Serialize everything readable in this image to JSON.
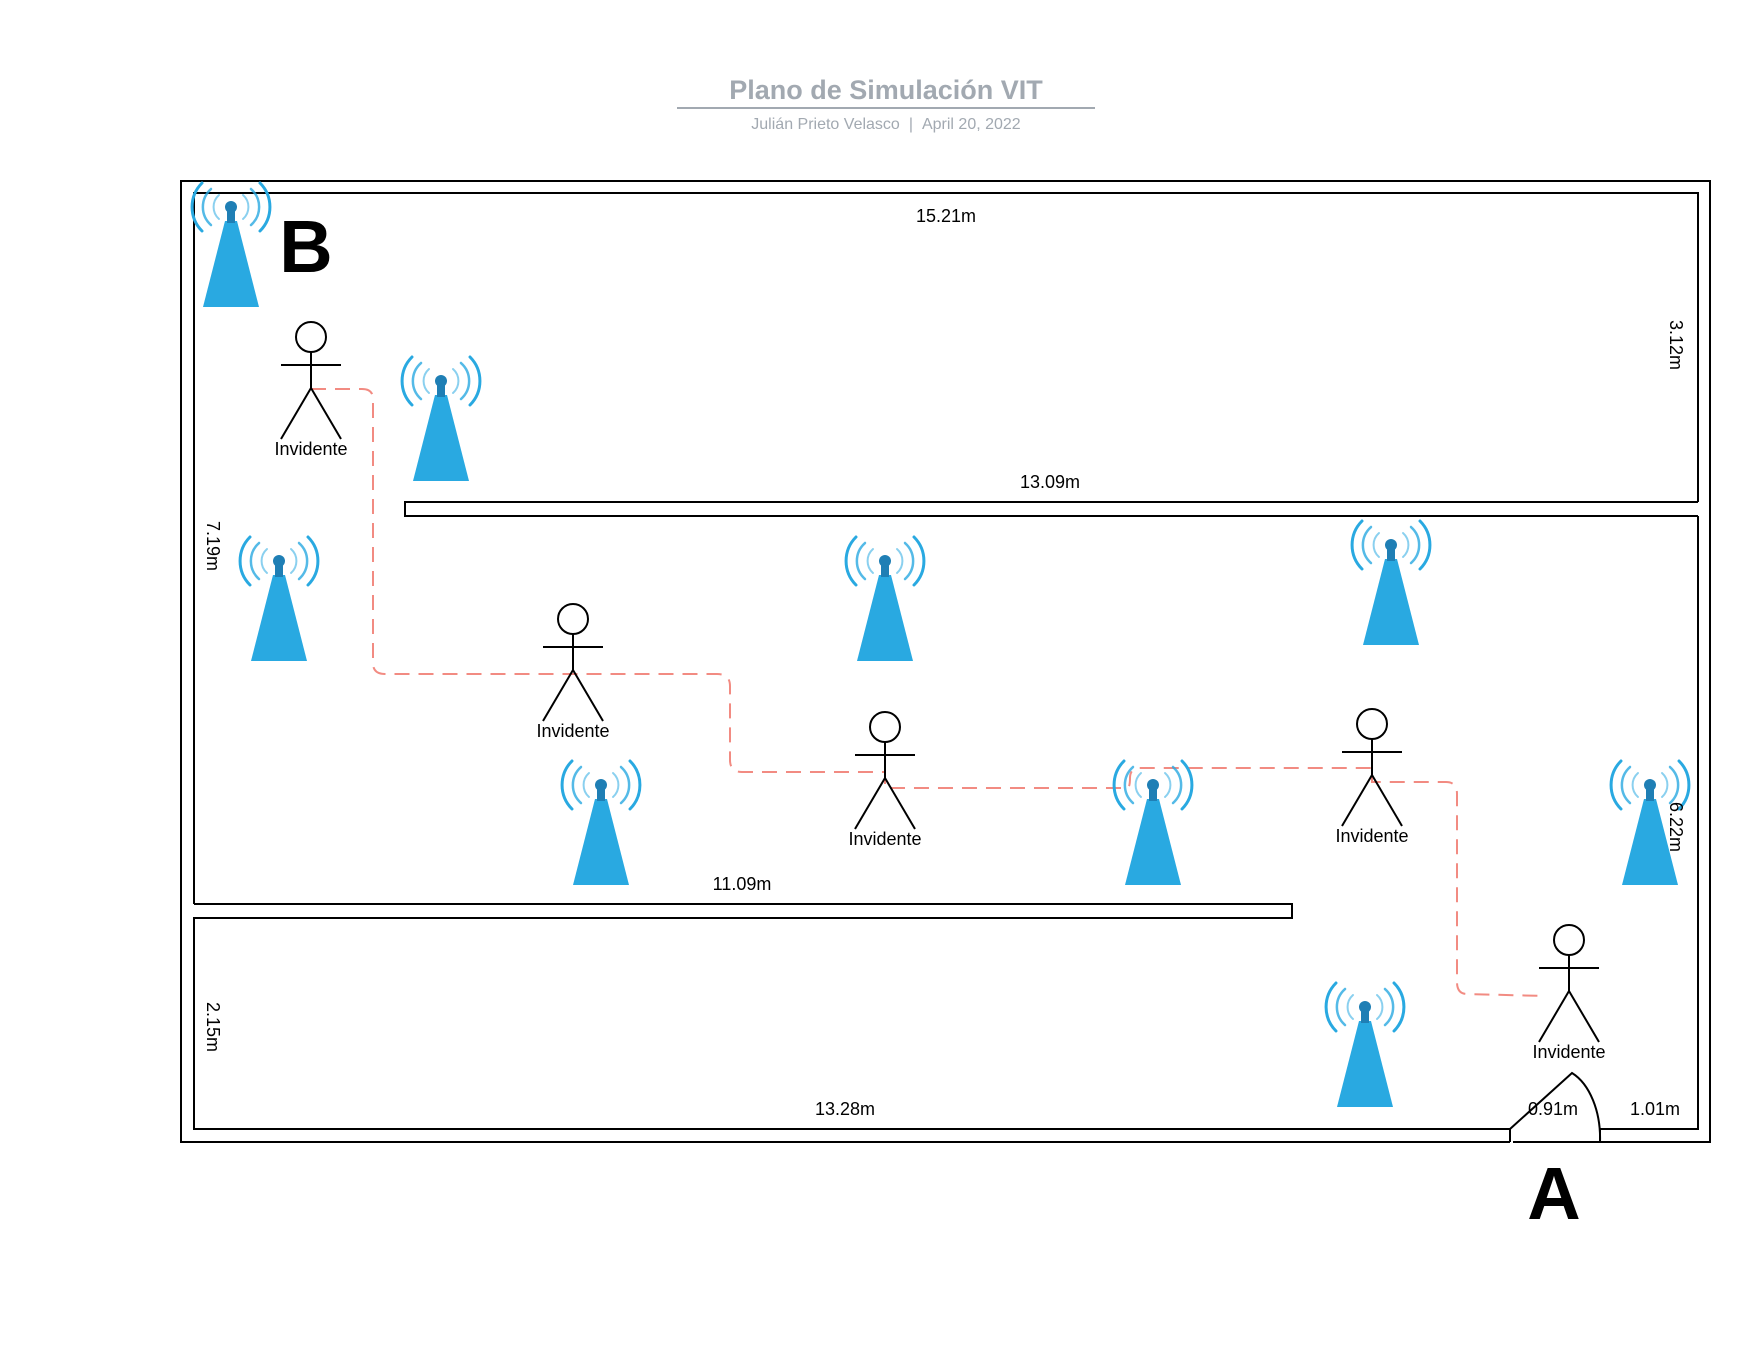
{
  "header": {
    "title": "Plano de Simulación VIT",
    "author": "Julián Prieto Velasco",
    "separator": "|",
    "date": "April 20, 2022"
  },
  "points": {
    "start": "B",
    "end": "A"
  },
  "person_label": "Invidente",
  "dimensions": {
    "top_width": "15.21m",
    "upper_wall": "13.09m",
    "lower_wall": "11.09m",
    "bottom_width": "13.28m",
    "door_width": "0.91m",
    "door_right": "1.01m",
    "right_upper": "3.12m",
    "left_middle": "7.19m",
    "left_lower": "2.15m",
    "right_middle": "6.22m"
  },
  "colors": {
    "antenna": "#29a9e1",
    "antenna_head": "#1f7fb5",
    "path": "#f28b82",
    "wall": "#000000",
    "header_text": "#a2a9b1"
  },
  "icons": {
    "antenna": "antenna-icon",
    "person": "person-icon"
  }
}
